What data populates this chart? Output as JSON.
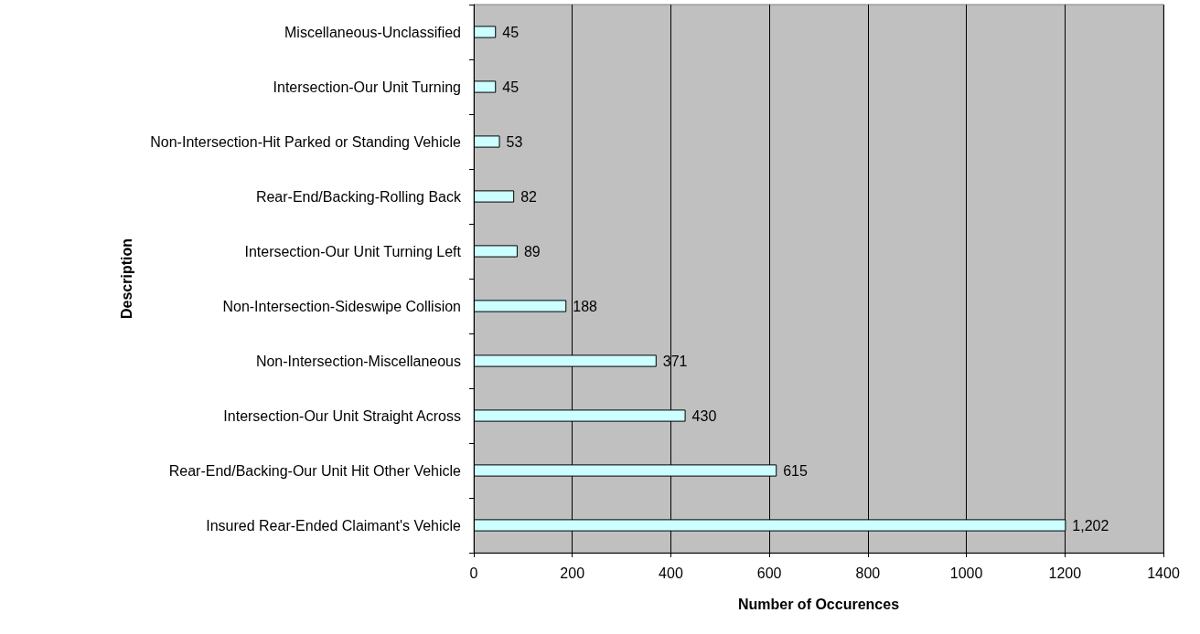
{
  "chart_data": {
    "type": "bar",
    "orientation": "horizontal",
    "xlabel": "Number of Occurences",
    "ylabel": "Description",
    "categories": [
      "Miscellaneous-Unclassified",
      "Intersection-Our Unit Turning",
      "Non-Intersection-Hit Parked or Standing Vehicle",
      "Rear-End/Backing-Rolling Back",
      "Intersection-Our Unit Turning Left",
      "Non-Intersection-Sideswipe Collision",
      "Non-Intersection-Miscellaneous",
      "Intersection-Our Unit Straight Across",
      "Rear-End/Backing-Our Unit Hit Other Vehicle",
      "Insured Rear-Ended Claimant's Vehicle"
    ],
    "values": [
      45,
      45,
      53,
      82,
      89,
      188,
      371,
      430,
      615,
      1202
    ],
    "value_labels": [
      "45",
      "45",
      "53",
      "82",
      "89",
      "188",
      "371",
      "430",
      "615",
      "1,202"
    ],
    "color": "#ccffff",
    "xlim": [
      0,
      1400
    ],
    "xticks": [
      0,
      200,
      400,
      600,
      800,
      1000,
      1200,
      1400
    ],
    "grid": "x"
  }
}
